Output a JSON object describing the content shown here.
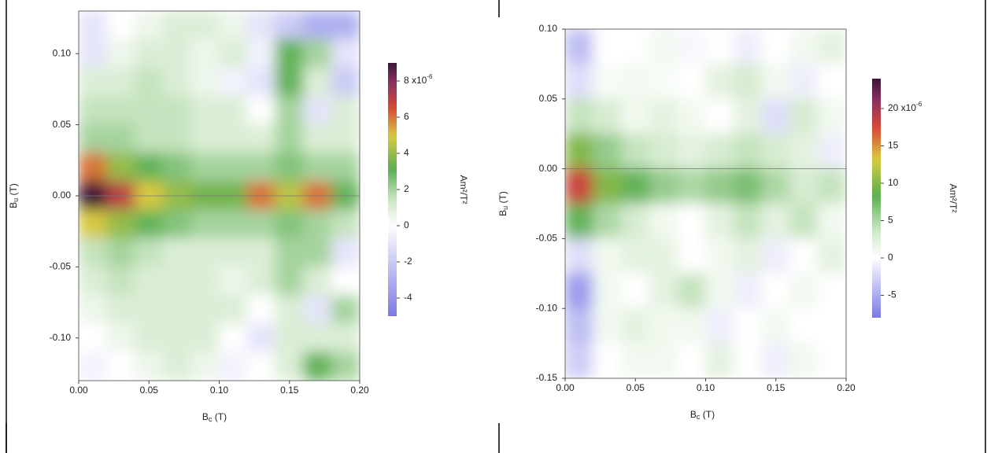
{
  "chart_data": [
    {
      "type": "heatmap",
      "xlabel": [
        "B",
        "c",
        " (T)"
      ],
      "ylabel": [
        "B",
        "u",
        " (T)"
      ],
      "zlabel": "Am²/T²",
      "xlim": [
        0,
        0.2
      ],
      "ylim": [
        -0.13,
        0.13
      ],
      "zlim": [
        -5,
        9
      ],
      "xticks": [
        {
          "value": 0,
          "label": "0.00"
        },
        0.05,
        {
          "value": 0.1,
          "label": "0.10"
        },
        0.15,
        {
          "value": 0.2,
          "label": "0.20"
        }
      ],
      "yticks": [
        {
          "value": -0.1,
          "label": "-0.10"
        },
        -0.05,
        {
          "value": 0,
          "label": "0.00"
        },
        0.05,
        {
          "value": 0.1,
          "label": "0.10"
        }
      ],
      "zticks": [
        -4,
        -2,
        0,
        2,
        4,
        6,
        {
          "value": 8,
          "label": "8 x10",
          "exponent": "-6"
        }
      ],
      "colors": [
        "#7a7ae6",
        "#ffffff",
        "#cfe8c8",
        "#5aae50",
        "#d8cc40",
        "#d84a36",
        "#8a3060",
        "#3a1638"
      ],
      "x": [
        0.01,
        0.03,
        0.05,
        0.07,
        0.09,
        0.11,
        0.13,
        0.15,
        0.17,
        0.19
      ],
      "y": [
        0.12,
        0.1,
        0.08,
        0.06,
        0.04,
        0.02,
        0,
        -0.02,
        -0.04,
        -0.06,
        -0.08,
        -0.1,
        -0.12
      ],
      "z": [
        [
          -1,
          0,
          0.5,
          1,
          1,
          0.5,
          -1,
          -2,
          -3,
          -3
        ],
        [
          -1,
          0.5,
          1,
          1,
          0.5,
          1,
          -0.5,
          3,
          2,
          -1
        ],
        [
          1,
          1,
          1.5,
          1,
          0.5,
          -0.5,
          -1,
          3,
          1,
          -2
        ],
        [
          1.5,
          1.5,
          1.5,
          1.5,
          1,
          1,
          0,
          2,
          -1,
          1
        ],
        [
          2,
          2,
          1.5,
          1.5,
          1,
          1,
          1,
          2,
          1,
          1
        ],
        [
          6,
          4,
          3,
          2.5,
          2,
          2,
          2,
          2.5,
          2,
          2
        ],
        [
          9,
          7,
          5,
          4,
          3.5,
          3.5,
          6,
          4.5,
          6,
          3
        ],
        [
          5,
          4,
          3,
          2.5,
          2,
          2,
          2,
          2.5,
          2,
          1.5
        ],
        [
          1.5,
          2,
          1.5,
          1,
          1,
          1,
          1,
          2,
          2,
          -1
        ],
        [
          1,
          1.5,
          1,
          1,
          1,
          0.5,
          1,
          2,
          1,
          0
        ],
        [
          0.5,
          1,
          1,
          1,
          1,
          1,
          0,
          1,
          -1,
          2
        ],
        [
          0,
          0.5,
          1,
          1,
          1,
          0,
          -1,
          1,
          1,
          1
        ],
        [
          -0.5,
          0,
          0.5,
          1,
          0.5,
          -0.5,
          0,
          1,
          3,
          2
        ]
      ]
    },
    {
      "type": "heatmap",
      "xlabel": [
        "B",
        "c",
        " (T)"
      ],
      "ylabel": [
        "B",
        "u",
        " (T)"
      ],
      "zlabel": "Am²/T²",
      "xlim": [
        0,
        0.2
      ],
      "ylim": [
        -0.15,
        0.1
      ],
      "zlim": [
        -8,
        24
      ],
      "xticks": [
        {
          "value": 0,
          "label": "0.00"
        },
        0.05,
        {
          "value": 0.1,
          "label": "0.10"
        },
        0.15,
        {
          "value": 0.2,
          "label": "0.20"
        }
      ],
      "yticks": [
        -0.15,
        {
          "value": -0.1,
          "label": "-0.10"
        },
        -0.05,
        {
          "value": 0,
          "label": "0.00"
        },
        0.05,
        {
          "value": 0.1,
          "label": "0.10"
        }
      ],
      "zticks": [
        -5,
        0,
        5,
        10,
        15,
        {
          "value": 20,
          "label": "20 x10",
          "exponent": "-6"
        }
      ],
      "colors": [
        "#7a7ae6",
        "#ffffff",
        "#cfe8c8",
        "#5aae50",
        "#d8cc40",
        "#d84a36",
        "#8a3060",
        "#3a1638"
      ],
      "x": [
        0.01,
        0.03,
        0.05,
        0.07,
        0.09,
        0.11,
        0.13,
        0.15,
        0.17,
        0.19
      ],
      "y": [
        0.0875,
        0.0625,
        0.0375,
        0.0125,
        -0.0125,
        -0.0375,
        -0.0625,
        -0.0875,
        -0.1125,
        -0.1375
      ],
      "z": [
        [
          -4,
          0,
          0,
          1,
          -0.5,
          0,
          -1,
          0,
          1,
          2
        ],
        [
          -2,
          0.5,
          1,
          0.5,
          0,
          2,
          3,
          1,
          -1,
          0
        ],
        [
          4,
          3,
          1,
          2,
          1,
          0,
          2,
          -2,
          3,
          1
        ],
        [
          10,
          6,
          4,
          3,
          2,
          3,
          4,
          3,
          2,
          -1
        ],
        [
          18,
          10,
          8,
          6,
          5,
          6,
          7,
          5,
          3,
          4
        ],
        [
          8,
          5,
          3,
          1,
          0,
          2,
          4,
          2,
          4,
          1
        ],
        [
          -2,
          1,
          2,
          2,
          0,
          1,
          2,
          -1,
          0,
          2
        ],
        [
          -6,
          1,
          0,
          2,
          4,
          1,
          -1,
          0,
          1,
          0
        ],
        [
          -4,
          1,
          2,
          1,
          1,
          -1,
          0,
          1,
          0,
          0
        ],
        [
          -3,
          0,
          1,
          1,
          0,
          2,
          0,
          -1,
          1,
          0
        ]
      ]
    }
  ]
}
